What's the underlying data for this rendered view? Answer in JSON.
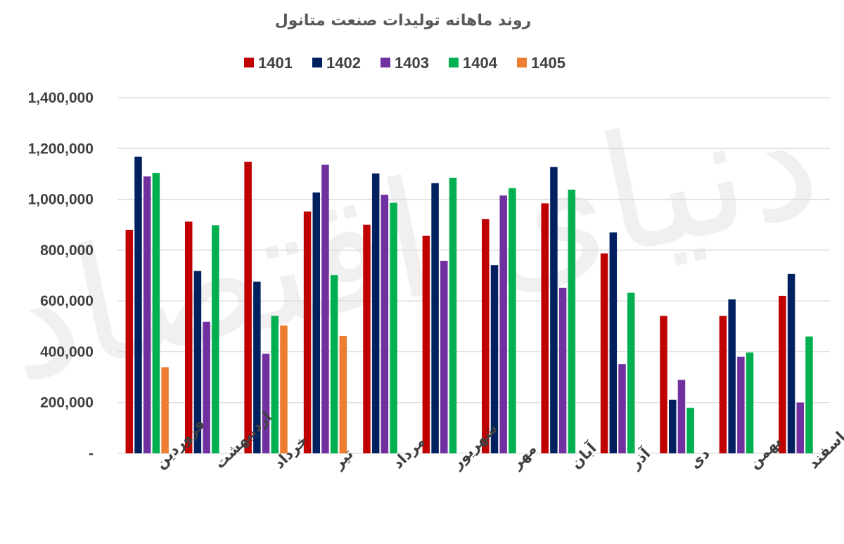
{
  "chart_data": {
    "type": "bar",
    "title": "روند ماهانه تولیدات صنعت متانول",
    "categories": [
      "فروردین",
      "اردیبهشت",
      "خرداد",
      "تیر",
      "مرداد",
      "شهریور",
      "مهر",
      "آبان",
      "آذر",
      "دی",
      "بهمن",
      "اسفند"
    ],
    "series": [
      {
        "name": "1401",
        "color": "#c00000",
        "values": [
          880000,
          912000,
          1148000,
          952000,
          900000,
          856000,
          922000,
          984000,
          787000,
          541000,
          541000,
          620000
        ]
      },
      {
        "name": "1402",
        "color": "#002060",
        "values": [
          1168000,
          718000,
          676000,
          1027000,
          1102000,
          1064000,
          741000,
          1127000,
          870000,
          211000,
          606000,
          706000
        ]
      },
      {
        "name": "1403",
        "color": "#7030a0",
        "values": [
          1090000,
          518000,
          392000,
          1136000,
          1018000,
          758000,
          1015000,
          651000,
          351000,
          289000,
          380000,
          200000
        ]
      },
      {
        "name": "1404",
        "color": "#00b050",
        "values": [
          1104000,
          898000,
          541000,
          702000,
          986000,
          1085000,
          1044000,
          1038000,
          632000,
          179000,
          397000,
          460000
        ]
      },
      {
        "name": "1405",
        "color": "#ed7d31",
        "values": [
          339000,
          null,
          503000,
          462000,
          null,
          null,
          null,
          null,
          null,
          null,
          null,
          null
        ]
      }
    ],
    "yticks": [
      {
        "value": 0,
        "label": "-"
      },
      {
        "value": 200000,
        "label": "200,000"
      },
      {
        "value": 400000,
        "label": "400,000"
      },
      {
        "value": 600000,
        "label": "600,000"
      },
      {
        "value": 800000,
        "label": "800,000"
      },
      {
        "value": 1000000,
        "label": "1,000,000"
      },
      {
        "value": 1200000,
        "label": "1,200,000"
      },
      {
        "value": 1400000,
        "label": "1,400,000"
      }
    ],
    "ylim": [
      0,
      1400000
    ],
    "grid": true,
    "legend_position": "top-center",
    "watermark": "دنیای اقتصاد"
  }
}
